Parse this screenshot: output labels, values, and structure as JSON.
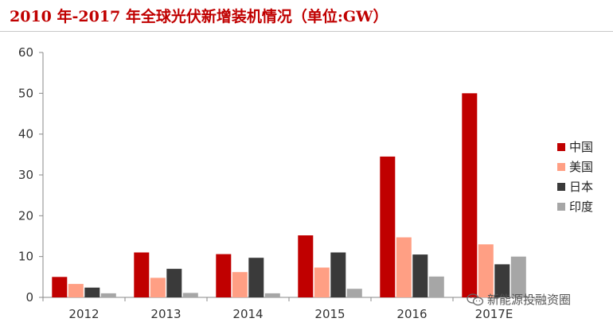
{
  "title": "2010 年-2017 年全球光伏新增装机情况（单位:GW）",
  "watermark": {
    "text": "新能源投融资圈",
    "icon": "wechat-icon"
  },
  "chart_data": {
    "type": "bar",
    "title": "2010 年-2017 年全球光伏新增装机情况（单位:GW）",
    "xlabel": "",
    "ylabel": "",
    "ylim": [
      0,
      60
    ],
    "yticks": [
      "0",
      "10",
      "20",
      "30",
      "40",
      "50",
      "60"
    ],
    "grid": false,
    "legend_position": "right",
    "categories": [
      "2012",
      "2013",
      "2014",
      "2015",
      "2016",
      "2017E"
    ],
    "series": [
      {
        "name": "中国",
        "color": "#c00000",
        "values": [
          5,
          11,
          10.6,
          15.2,
          34.5,
          50
        ]
      },
      {
        "name": "美国",
        "color": "#ff9f84",
        "values": [
          3.3,
          4.8,
          6.2,
          7.3,
          14.7,
          13
        ]
      },
      {
        "name": "日本",
        "color": "#3a3a3a",
        "values": [
          2.4,
          7,
          9.7,
          11,
          10.5,
          8.1
        ]
      },
      {
        "name": "印度",
        "color": "#a6a6a6",
        "values": [
          1,
          1.1,
          1,
          2.1,
          5.1,
          10
        ]
      }
    ]
  }
}
